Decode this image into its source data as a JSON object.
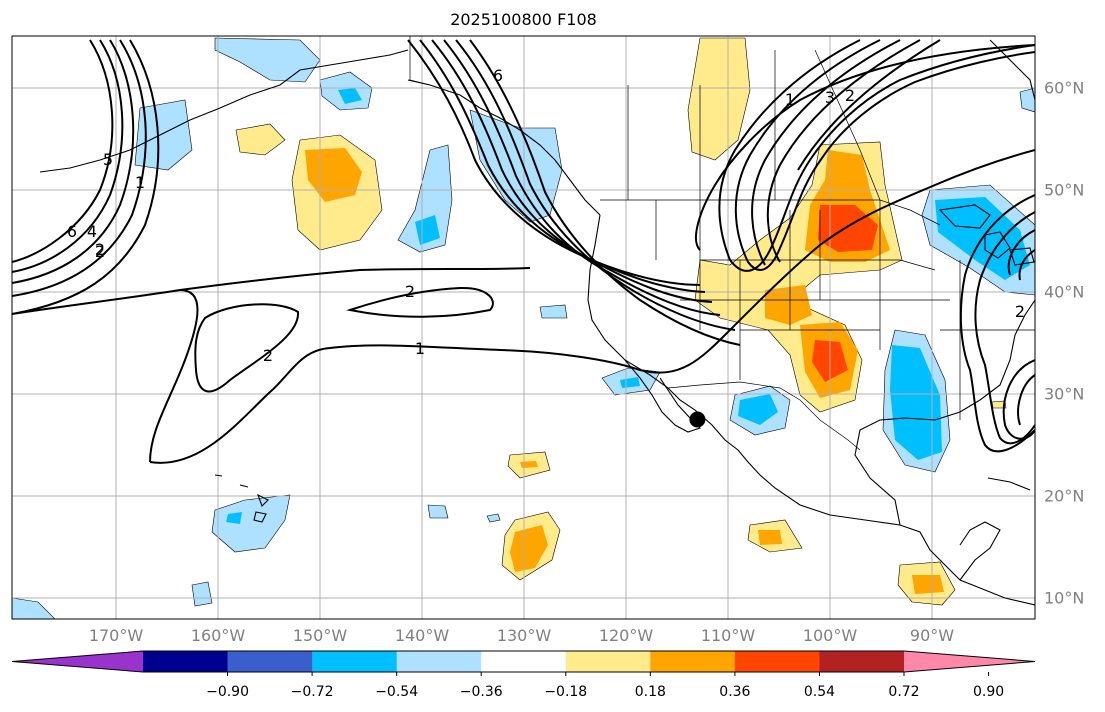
{
  "title": "2025100800 F108",
  "colors": {
    "ocean": "#ffffff",
    "grid": "#b0b0b0",
    "coast": "#000000",
    "positive": [
      "#ffea8c",
      "#ffa500",
      "#ff4500",
      "#b22222",
      "#ff88aa"
    ],
    "negative": [
      "#aee0ff",
      "#00bfff",
      "#3a5fcd",
      "#000090",
      "#9933cc"
    ],
    "neutral": "#ffffff"
  },
  "lon_labels": [
    "170°W",
    "160°W",
    "150°W",
    "140°W",
    "130°W",
    "120°W",
    "110°W",
    "100°W",
    "90°W"
  ],
  "lat_labels": [
    "60°N",
    "50°N",
    "40°N",
    "30°N",
    "20°N",
    "10°N"
  ],
  "lat_values": [
    60,
    50,
    40,
    30,
    20,
    10
  ],
  "lon_values": [
    -170,
    -160,
    -150,
    -140,
    -130,
    -120,
    -110,
    -100,
    -90
  ],
  "colorbar": {
    "levels": [
      "−0.90",
      "−0.72",
      "−0.54",
      "−0.36",
      "−0.18",
      "0.18",
      "0.36",
      "0.54",
      "0.72",
      "0.90"
    ],
    "colors": [
      "#9933cc",
      "#000090",
      "#3a5fcd",
      "#00bfff",
      "#aee0ff",
      "#ffffff",
      "#ffea8c",
      "#ffa500",
      "#ff4500",
      "#b22222",
      "#ff88aa"
    ]
  },
  "contour_labels": [
    "2",
    "1",
    "2",
    "6",
    "4",
    "2",
    "5",
    "1",
    "6",
    "2",
    "1",
    "3",
    "2",
    "2"
  ],
  "marker": {
    "name": "location-marker",
    "lon": -113,
    "lat": 27.5
  }
}
